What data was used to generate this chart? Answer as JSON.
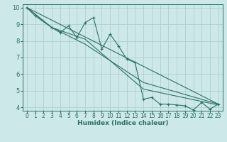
{
  "bg_color": "#cde8e8",
  "grid_color": "#b0d0d0",
  "line_color": "#2d7068",
  "xlabel": "Humidex (Indice chaleur)",
  "xlim": [
    -0.5,
    23.5
  ],
  "ylim": [
    3.8,
    10.2
  ],
  "yticks": [
    4,
    5,
    6,
    7,
    8,
    9,
    10
  ],
  "xticks": [
    0,
    1,
    2,
    3,
    4,
    5,
    6,
    7,
    8,
    9,
    10,
    11,
    12,
    13,
    14,
    15,
    16,
    17,
    18,
    19,
    20,
    21,
    22,
    23
  ],
  "series": [
    {
      "x": [
        0,
        1,
        3,
        4,
        5,
        6,
        7,
        8,
        9,
        10,
        11,
        12,
        13,
        14,
        15,
        16,
        17,
        18,
        19,
        20,
        21,
        22,
        23
      ],
      "y": [
        10.0,
        9.5,
        8.8,
        8.5,
        8.9,
        8.2,
        9.1,
        9.4,
        7.5,
        8.4,
        7.7,
        6.9,
        6.7,
        4.5,
        4.6,
        4.2,
        4.2,
        4.15,
        4.1,
        3.85,
        4.3,
        3.9,
        4.2
      ],
      "marker": true
    },
    {
      "x": [
        0,
        23
      ],
      "y": [
        10.0,
        4.2
      ],
      "marker": false
    },
    {
      "x": [
        0,
        3,
        7,
        14,
        23
      ],
      "y": [
        10.0,
        8.8,
        8.1,
        5.1,
        4.15
      ],
      "marker": false
    },
    {
      "x": [
        0,
        3,
        7,
        14,
        23
      ],
      "y": [
        10.0,
        8.8,
        7.8,
        5.5,
        4.2
      ],
      "marker": false
    }
  ]
}
